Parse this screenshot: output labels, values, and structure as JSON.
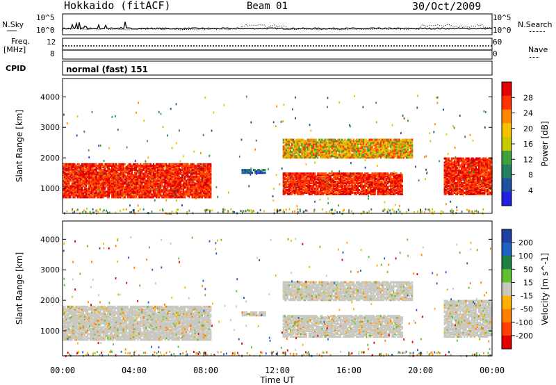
{
  "header": {
    "station": "Hokkaido (fitACF)",
    "beam": "Beam 01",
    "date": "30/Oct/2009"
  },
  "strip": {
    "nsky_label": "N.Sky",
    "nsky_ticks": [
      "10^5",
      "10^0"
    ],
    "nsearch_label": "N.Search",
    "nsearch_ticks": [
      "10^5",
      "10^0"
    ],
    "freq_label": "Freq.",
    "freq_unit": "[MHz]",
    "freq_ticks": [
      "12",
      "8"
    ],
    "nave_label": "Nave",
    "nave_ticks": [
      "60",
      "0"
    ],
    "cpid_label": "CPID",
    "cpid_value": "normal (fast) 151"
  },
  "chart_data": [
    {
      "type": "heatmap",
      "panel": "power",
      "xlabel": "",
      "ylabel": "Slant Range [km]",
      "yticks": [
        "4000",
        "3000",
        "2000",
        "1000"
      ],
      "ylim": [
        180,
        4600
      ],
      "xlim": [
        0,
        24
      ],
      "colorbar_label": "Power [dB]",
      "colorbar_ticks": [
        "28",
        "24",
        "20",
        "16",
        "12",
        "8",
        "4"
      ],
      "colorbar_colors": [
        "#e60000",
        "#ff3300",
        "#ff8800",
        "#f5c000",
        "#c8c800",
        "#40a040",
        "#208060",
        "#2050a0",
        "#2020e0"
      ],
      "echo_regions": [
        {
          "t0": 0,
          "t1": 8.3,
          "r0": 700,
          "r1": 1800,
          "level": "high"
        },
        {
          "t0": 10.0,
          "t1": 11.3,
          "r0": 1500,
          "r1": 1600,
          "level": "low"
        },
        {
          "t0": 12.3,
          "t1": 19.0,
          "r0": 800,
          "r1": 1500,
          "level": "high"
        },
        {
          "t0": 12.3,
          "t1": 19.5,
          "r0": 2000,
          "r1": 2600,
          "level": "mid"
        },
        {
          "t0": 21.3,
          "t1": 24,
          "r0": 800,
          "r1": 2000,
          "level": "high"
        }
      ]
    },
    {
      "type": "heatmap",
      "panel": "velocity",
      "xlabel": "Time UT",
      "ylabel": "Slant Range [km]",
      "yticks": [
        "4000",
        "3000",
        "2000",
        "1000"
      ],
      "xticks": [
        "00:00",
        "04:00",
        "08:00",
        "12:00",
        "16:00",
        "20:00",
        "00:00"
      ],
      "ylim": [
        180,
        4600
      ],
      "xlim": [
        0,
        24
      ],
      "colorbar_label": "Velocity [m s^-1]",
      "colorbar_ticks": [
        "200",
        "100",
        "50",
        "15",
        "-15",
        "-50",
        "-100",
        "-200"
      ],
      "colorbar_colors": [
        "#2040a0",
        "#2060c0",
        "#208040",
        "#60c030",
        "#c8c8c0",
        "#ffb000",
        "#ff8000",
        "#ff4000",
        "#e00000"
      ]
    }
  ]
}
